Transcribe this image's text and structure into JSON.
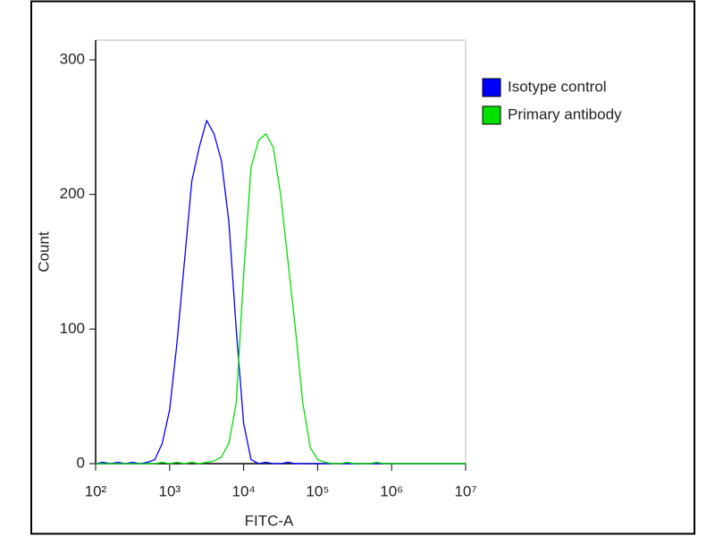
{
  "chart_data": {
    "type": "line",
    "xlabel": "FITC-A",
    "ylabel": "Count",
    "x": [
      100,
      126,
      158,
      200,
      251,
      316,
      398,
      501,
      631,
      794,
      1000,
      1259,
      1585,
      1995,
      2512,
      3162,
      3981,
      5012,
      6310,
      7943,
      10000,
      12589,
      15849,
      19953,
      25119,
      31623,
      39811,
      50119,
      63096,
      79433,
      100000,
      125893,
      158489,
      199526,
      251189,
      316228,
      398107,
      501187,
      630957,
      794328,
      1000000,
      1258925,
      1584893,
      1995262,
      2511886,
      3162278,
      3981072,
      5011872,
      6309573,
      7943282,
      10000000
    ],
    "series": [
      {
        "name": "Isotype control",
        "color": "#0000ff",
        "values": [
          0,
          1,
          0,
          1,
          0,
          1,
          0,
          1,
          3,
          15,
          40,
          90,
          150,
          210,
          235,
          255,
          245,
          225,
          180,
          100,
          30,
          3,
          0,
          1,
          0,
          0,
          1,
          0,
          0,
          0,
          0,
          0,
          0,
          0,
          0,
          0,
          0,
          0,
          0,
          0,
          0,
          0,
          0,
          0,
          0,
          0,
          0,
          0,
          0,
          0,
          0
        ]
      },
      {
        "name": "Primary antibody",
        "color": "#00e000",
        "values": [
          0,
          0,
          0,
          0,
          0,
          0,
          0,
          0,
          0,
          1,
          0,
          1,
          0,
          1,
          0,
          1,
          2,
          5,
          15,
          45,
          140,
          220,
          240,
          245,
          235,
          200,
          150,
          100,
          45,
          12,
          3,
          1,
          0,
          0,
          1,
          0,
          0,
          0,
          1,
          0,
          0,
          0,
          0,
          0,
          0,
          0,
          0,
          0,
          0,
          0,
          0
        ]
      }
    ],
    "xscale": "log",
    "xlim": [
      100,
      10000000
    ],
    "xticks": [
      {
        "value": 100,
        "label": "10²"
      },
      {
        "value": 1000,
        "label": "10³"
      },
      {
        "value": 10000,
        "label": "10⁴"
      },
      {
        "value": 100000,
        "label": "10⁵"
      },
      {
        "value": 1000000,
        "label": "10⁶"
      },
      {
        "value": 10000000,
        "label": "10⁷"
      }
    ],
    "ylim": [
      0,
      300
    ],
    "yticks": [
      0,
      100,
      200,
      300
    ],
    "legend": "upper right"
  }
}
